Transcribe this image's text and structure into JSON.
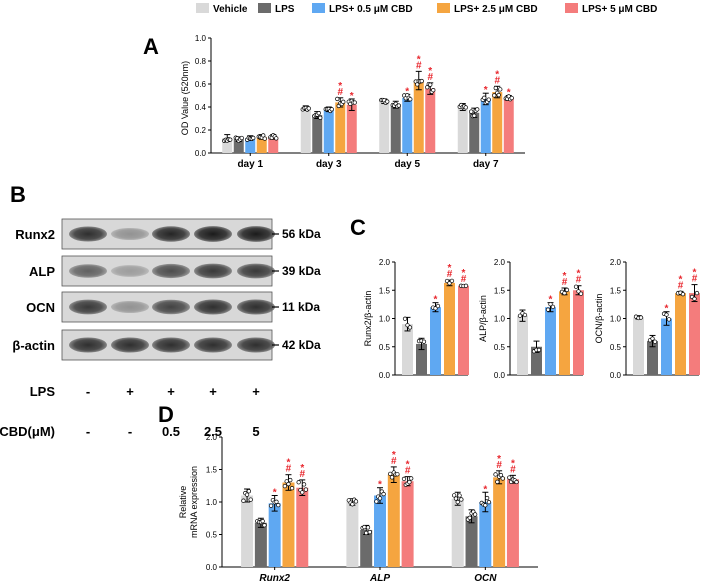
{
  "legend": [
    {
      "label": "Vehicle",
      "color": "#d9d9d9"
    },
    {
      "label": "LPS",
      "color": "#6b6b6b"
    },
    {
      "label": "LPS+ 0.5 μM CBD",
      "color": "#5fa8f2"
    },
    {
      "label": "LPS+ 2.5 μM CBD",
      "color": "#f5a540"
    },
    {
      "label": "LPS+ 5 μM CBD",
      "color": "#f47c7c"
    }
  ],
  "panels": {
    "A": "A",
    "B": "B",
    "C": "C",
    "D": "D"
  },
  "blot": {
    "proteins": [
      {
        "name": "Runx2",
        "kda": "56 kDa"
      },
      {
        "name": "ALP",
        "kda": "39 kDa"
      },
      {
        "name": "OCN",
        "kda": "11 kDa"
      },
      {
        "name": "β-actin",
        "kda": "42 kDa"
      }
    ],
    "lps_label": "LPS",
    "lps_values": [
      "-",
      "+",
      "+",
      "+",
      "+"
    ],
    "cbd_label": "CBD(μM)",
    "cbd_values": [
      "-",
      "-",
      "0.5",
      "2.5",
      "5"
    ]
  },
  "chart_data": [
    {
      "id": "A",
      "type": "bar",
      "ylabel": "OD Value (520nm)",
      "categories": [
        "day 1",
        "day 3",
        "day 5",
        "day 7"
      ],
      "ylim": [
        0,
        1.0
      ],
      "yticks": [
        "0.0",
        "0.2",
        "0.4",
        "0.6",
        "0.8",
        "1.0"
      ],
      "series": [
        {
          "name": "Vehicle",
          "values": [
            0.13,
            0.39,
            0.45,
            0.4
          ],
          "err": [
            0.03,
            0.02,
            0.02,
            0.03
          ]
        },
        {
          "name": "LPS",
          "values": [
            0.12,
            0.33,
            0.42,
            0.35
          ],
          "err": [
            0.02,
            0.03,
            0.03,
            0.04
          ]
        },
        {
          "name": "LPS+ 0.5 μM CBD",
          "values": [
            0.13,
            0.38,
            0.48,
            0.47
          ],
          "err": [
            0.02,
            0.02,
            0.03,
            0.05
          ]
        },
        {
          "name": "LPS+ 2.5 μM CBD",
          "values": [
            0.14,
            0.44,
            0.63,
            0.53
          ],
          "err": [
            0.02,
            0.04,
            0.08,
            0.05
          ]
        },
        {
          "name": "LPS+ 5 μM CBD",
          "values": [
            0.14,
            0.42,
            0.56,
            0.48
          ],
          "err": [
            0.02,
            0.05,
            0.05,
            0.02
          ]
        }
      ],
      "marks": [
        [],
        [
          "",
          "",
          "",
          "*#",
          "*"
        ],
        [
          "",
          "",
          "*",
          "*#",
          "*#"
        ],
        [
          "",
          "",
          "*",
          "*#",
          "*"
        ]
      ]
    },
    {
      "id": "C1",
      "type": "bar",
      "ylabel": "Runx2/β-actin",
      "ylim": [
        0,
        2.0
      ],
      "yticks": [
        "0.0",
        "0.5",
        "1.0",
        "1.5",
        "2.0"
      ],
      "values": [
        0.9,
        0.55,
        1.2,
        1.63,
        1.58
      ],
      "err": [
        0.12,
        0.1,
        0.08,
        0.05,
        0.01
      ],
      "marks": [
        "",
        "",
        "*",
        "*#",
        "*#"
      ]
    },
    {
      "id": "C2",
      "type": "bar",
      "ylabel": "ALP/β-actin",
      "ylim": [
        0,
        2.0
      ],
      "yticks": [
        "0.0",
        "0.5",
        "1.0",
        "1.5",
        "2.0"
      ],
      "values": [
        1.05,
        0.5,
        1.2,
        1.48,
        1.5
      ],
      "err": [
        0.1,
        0.1,
        0.08,
        0.06,
        0.08
      ],
      "marks": [
        "",
        "",
        "*",
        "*#",
        "*#"
      ]
    },
    {
      "id": "C3",
      "type": "bar",
      "ylabel": "OCN/β-actin",
      "ylim": [
        0,
        2.0
      ],
      "yticks": [
        "0.0",
        "0.5",
        "1.0",
        "1.5",
        "2.0"
      ],
      "values": [
        1.02,
        0.6,
        1.0,
        1.45,
        1.45
      ],
      "err": [
        0.03,
        0.1,
        0.12,
        0.03,
        0.15
      ],
      "marks": [
        "",
        "",
        "*",
        "*#",
        "*#"
      ]
    },
    {
      "id": "D",
      "type": "bar",
      "ylabel": "Relative mRNA expression",
      "ylabel_lines": [
        "Relative",
        "mRNA expression"
      ],
      "categories": [
        "Runx2",
        "ALP",
        "OCN"
      ],
      "ylim": [
        0,
        2.0
      ],
      "yticks": [
        "0.0",
        "0.5",
        "1.0",
        "1.5",
        "2.0"
      ],
      "series": [
        {
          "name": "Vehicle",
          "values": [
            1.1,
            1.0,
            1.05
          ],
          "err": [
            0.1,
            0.05,
            0.1
          ]
        },
        {
          "name": "LPS",
          "values": [
            0.68,
            0.57,
            0.78
          ],
          "err": [
            0.07,
            0.07,
            0.1
          ]
        },
        {
          "name": "LPS+ 0.5 μM CBD",
          "values": [
            0.98,
            1.1,
            1.0
          ],
          "err": [
            0.12,
            0.12,
            0.15
          ]
        },
        {
          "name": "LPS+ 2.5 μM CBD",
          "values": [
            1.3,
            1.42,
            1.38
          ],
          "err": [
            0.12,
            0.12,
            0.1
          ]
        },
        {
          "name": "LPS+ 5 μM CBD",
          "values": [
            1.22,
            1.32,
            1.35
          ],
          "err": [
            0.12,
            0.07,
            0.06
          ]
        }
      ],
      "marks": [
        [
          "",
          "",
          "*",
          "*#",
          "*#"
        ],
        [
          "",
          "",
          "*",
          "*#",
          "*#"
        ],
        [
          "",
          "",
          "*",
          "*#",
          "*#"
        ]
      ]
    }
  ]
}
